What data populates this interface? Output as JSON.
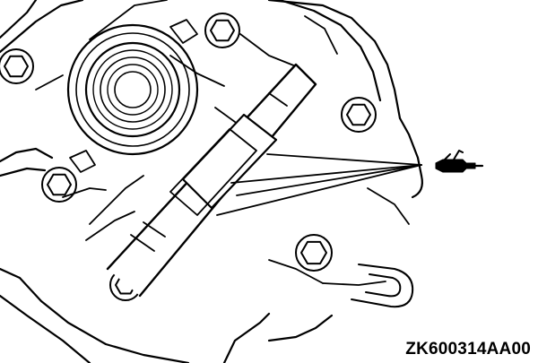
{
  "figure": {
    "code": "ZK600314AA00"
  },
  "symbol": {
    "icon": "oil-can-icon",
    "meaning": "apply-lubricant"
  },
  "colors": {
    "line": "#000000",
    "background": "#ffffff"
  }
}
